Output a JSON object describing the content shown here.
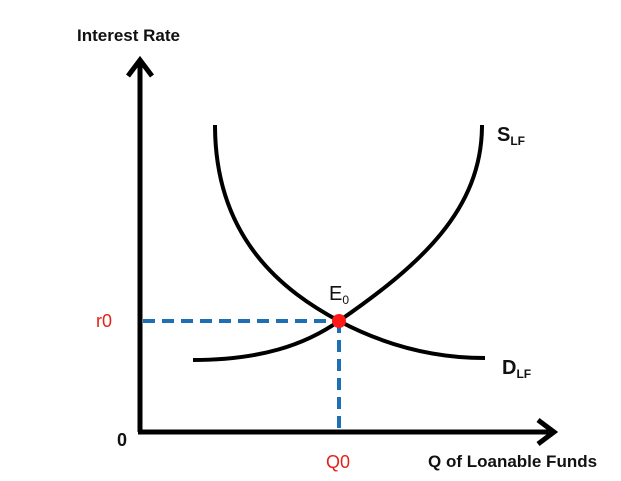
{
  "diagram": {
    "y_axis_label": "Interest Rate",
    "x_axis_label": "Q of Loanable Funds",
    "origin_label": "0",
    "equilibrium_rate": {
      "base": "r",
      "sub": "0"
    },
    "equilibrium_quantity": {
      "base": "Q",
      "sub": "0"
    },
    "equilibrium_point": {
      "base": "E",
      "sub": "0"
    },
    "supply_curve": {
      "base": "S",
      "sub": "LF"
    },
    "demand_curve": {
      "base": "D",
      "sub": "LF"
    },
    "colors": {
      "axes": "#000000",
      "curves": "#000000",
      "guides": "#1f6fb5",
      "equilibrium": "#ff1a1a",
      "value_labels": "#e2231a"
    }
  }
}
